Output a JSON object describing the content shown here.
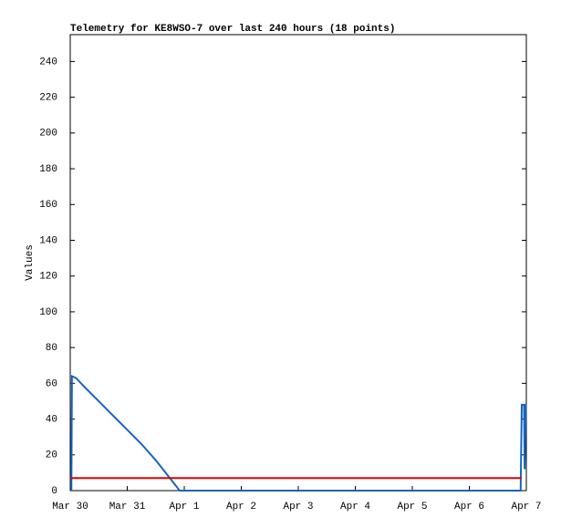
{
  "chart_data": {
    "type": "line",
    "title": "Telemetry for KE8WSO-7 over last 240 hours (18 points)",
    "y_label": "Values",
    "series": [
      {
        "color": "#1565c0",
        "x": [
          0.02,
          0.03,
          0.1,
          0.25,
          0.5,
          0.75,
          1,
          1.25,
          1.5,
          1.92,
          7.9,
          7.92,
          7.96,
          7.97,
          7.99,
          8
        ],
        "values": [
          0,
          64,
          63,
          58,
          50,
          42,
          34,
          26,
          17,
          0,
          0,
          48,
          48,
          12,
          48,
          48
        ]
      },
      {
        "color": "#e00000",
        "x": [
          0,
          7.92
        ],
        "values": [
          7,
          7
        ]
      }
    ],
    "xlim": [
      0,
      8
    ],
    "xticks": [
      {
        "value": 0,
        "label": "Mar 30"
      },
      {
        "value": 1,
        "label": "Mar 31"
      },
      {
        "value": 2,
        "label": "Apr 1"
      },
      {
        "value": 3,
        "label": "Apr 2"
      },
      {
        "value": 4,
        "label": "Apr 3"
      },
      {
        "value": 5,
        "label": "Apr 4"
      },
      {
        "value": 6,
        "label": "Apr 5"
      },
      {
        "value": 7,
        "label": "Apr 6"
      },
      {
        "value": 8,
        "label": "Apr 7"
      }
    ],
    "ylim": [
      0,
      255
    ],
    "yticks": [
      0,
      20,
      40,
      60,
      80,
      100,
      120,
      140,
      160,
      180,
      200,
      220,
      240
    ]
  }
}
